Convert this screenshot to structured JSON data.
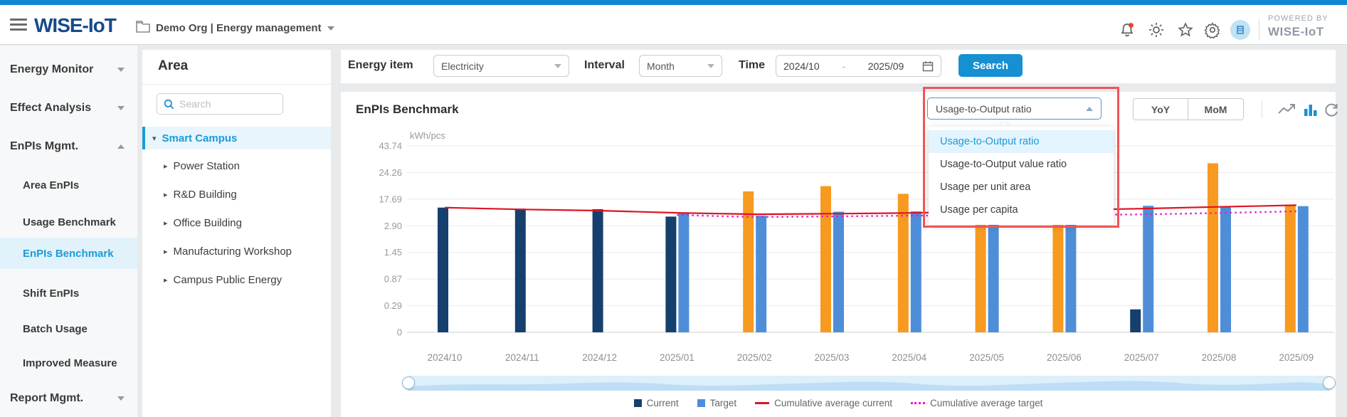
{
  "topbar": {
    "logo": "WISE-IoT",
    "org": "Demo Org | Energy management",
    "powered_by": "POWERED BY",
    "powered_by_brand": "WISE-IoT"
  },
  "sidebar": {
    "items": [
      {
        "label": "Energy Monitor",
        "type": "group",
        "state": "collapsed"
      },
      {
        "label": "Effect Analysis",
        "type": "group",
        "state": "collapsed"
      },
      {
        "label": "EnPIs Mgmt.",
        "type": "group",
        "state": "expanded"
      },
      {
        "label": "Area EnPIs",
        "type": "sub"
      },
      {
        "label": "Usage Benchmark",
        "type": "sub"
      },
      {
        "label": "EnPIs Benchmark",
        "type": "sub",
        "active": true
      },
      {
        "label": "Shift EnPIs",
        "type": "sub"
      },
      {
        "label": "Batch Usage",
        "type": "sub"
      },
      {
        "label": "Improved Measure",
        "type": "sub"
      },
      {
        "label": "Report Mgmt.",
        "type": "group",
        "state": "collapsed"
      }
    ]
  },
  "area_panel": {
    "title": "Area",
    "search_placeholder": "Search",
    "tree": [
      {
        "label": "Smart Campus",
        "level": 0,
        "selected": true,
        "expanded": true
      },
      {
        "label": "Power Station",
        "level": 1
      },
      {
        "label": "R&D Building",
        "level": 1
      },
      {
        "label": "Office Building",
        "level": 1
      },
      {
        "label": "Manufacturing Workshop",
        "level": 1
      },
      {
        "label": "Campus Public Energy",
        "level": 1
      }
    ]
  },
  "filters": {
    "energy_item_label": "Energy item",
    "energy_item_value": "Electricity",
    "interval_label": "Interval",
    "interval_value": "Month",
    "time_label": "Time",
    "time_start": "2024/10",
    "time_separator": "-",
    "time_end": "2025/09",
    "search_button": "Search"
  },
  "chart_header": {
    "title": "EnPIs Benchmark",
    "yoy": "YoY",
    "mom": "MoM"
  },
  "metric_dropdown": {
    "value": "Usage-to-Output ratio",
    "selected_index": 0,
    "options": [
      "Usage-to-Output ratio",
      "Usage-to-Output value ratio",
      "Usage per unit area",
      "Usage per capita"
    ]
  },
  "colors": {
    "accent": "#1187d3",
    "current_bar": "#15406d",
    "current_exceed_bar": "#f79a1f",
    "target_bar": "#4e8ed8",
    "cumulative_current_line": "#dd1422",
    "cumulative_target_line": "#e61ccd",
    "highlight_box": "#f15454",
    "selected_text": "#1b9bd8"
  },
  "chart_data": {
    "type": "bar",
    "title": "EnPIs Benchmark",
    "unit": "kWh/pcs",
    "ylabel": "kWh/pcs",
    "y_ticks": [
      0,
      0.29,
      0.87,
      1.45,
      2.9,
      17.69,
      24.26,
      43.74
    ],
    "axis_note": "non-linear axis: tick values are evenly spaced gridlines",
    "grid": true,
    "legend_position": "bottom",
    "categories": [
      "2024/10",
      "2024/11",
      "2024/12",
      "2025/01",
      "2025/02",
      "2025/03",
      "2025/04",
      "2025/05",
      "2025/06",
      "2025/07",
      "2025/08",
      "2025/09"
    ],
    "series": [
      {
        "name": "Current",
        "type": "bar",
        "values": [
          13.0,
          12.4,
          12.1,
          8.0,
          19.6,
          20.9,
          19.0,
          18.6,
          18.5,
          0.25,
          31.0,
          14.7
        ]
      },
      {
        "name": "Target",
        "type": "bar",
        "values": [
          null,
          null,
          null,
          10.0,
          8.5,
          10.7,
          10.9,
          10.9,
          11.0,
          14.0,
          13.5,
          13.8
        ]
      },
      {
        "name": "Cumulative average current",
        "type": "line",
        "values": [
          13.0,
          12.0,
          11.3,
          10.1,
          9.3,
          9.6,
          10.0,
          10.8,
          11.6,
          12.4,
          13.4,
          14.3
        ]
      },
      {
        "name": "Cumulative average target",
        "type": "line",
        "style": "dotted",
        "values": [
          null,
          null,
          null,
          8.9,
          7.7,
          8.1,
          8.5,
          8.8,
          8.9,
          9.2,
          10.0,
          10.9
        ]
      }
    ]
  }
}
